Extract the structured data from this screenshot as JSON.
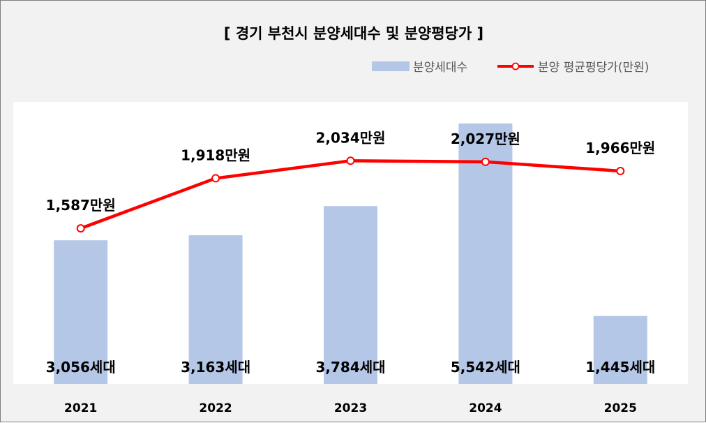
{
  "chart_data": {
    "type": "bar",
    "title": "[ 경기 부천시 분양세대수 및 분양평당가 ]",
    "categories": [
      "2021",
      "2022",
      "2023",
      "2024",
      "2025"
    ],
    "series": [
      {
        "name": "분양세대수",
        "type": "bar",
        "color": "#b4c7e7",
        "values": [
          3056,
          3163,
          3784,
          5542,
          1445
        ],
        "labels": [
          "3,056세대",
          "3,163세대",
          "3,784세대",
          "5,542세대",
          "1,445세대"
        ]
      },
      {
        "name": "분양 평균평당가(만원)",
        "type": "line",
        "color": "#ff0000",
        "values": [
          1587,
          1918,
          2034,
          2027,
          1966
        ],
        "labels": [
          "1,587만원",
          "1,918만원",
          "2,034만원",
          "2,027만원",
          "1,966만원"
        ]
      }
    ],
    "legend": "top-right",
    "grid": false
  }
}
